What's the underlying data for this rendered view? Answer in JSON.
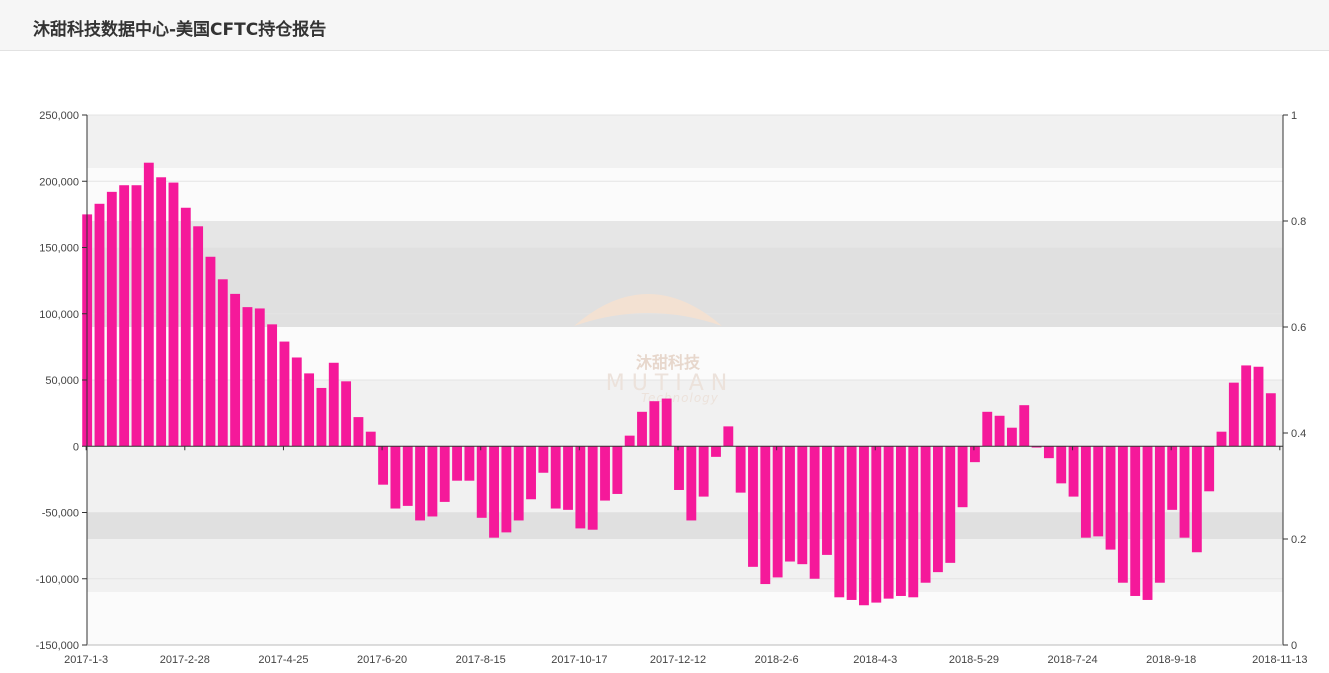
{
  "header": {
    "title": "沐甜科技数据中心-美国CFTC持仓报告"
  },
  "watermark": {
    "name_cn": "沐甜科技",
    "name_en": "MUTIAN",
    "sub": "Technology"
  },
  "colors": {
    "bar": "#f5199a",
    "axis": "#333333",
    "band_light": "#f1f1f1",
    "band_mid": "#e6e6e6",
    "band_dark": "#e0e0e0",
    "band_white": "#fbfbfb",
    "header_bg": "#f6f6f6"
  },
  "chart_data": {
    "type": "bar",
    "x_tick_labels": [
      "2017-1-3",
      "2017-2-28",
      "2017-4-25",
      "2017-6-20",
      "2017-8-15",
      "2017-10-17",
      "2017-12-12",
      "2018-2-6",
      "2018-4-3",
      "2018-5-29",
      "2018-7-24",
      "2018-9-18",
      "2018-11-13"
    ],
    "y_left": {
      "min": -150000,
      "max": 250000,
      "ticks": [
        250000,
        200000,
        150000,
        100000,
        50000,
        0,
        -50000,
        -100000,
        -150000
      ],
      "tick_labels": [
        "250,000",
        "200,000",
        "150,000",
        "100,000",
        "50,000",
        "0",
        "-50,000",
        "-100,000",
        "-150,000"
      ]
    },
    "y_right": {
      "min": 0,
      "max": 1,
      "ticks": [
        1,
        0.8,
        0.6,
        0.4,
        0.2,
        0
      ],
      "tick_labels": [
        "1",
        "0.8",
        "0.6",
        "0.4",
        "0.2",
        "0"
      ]
    },
    "bands": [
      {
        "from": 0.9,
        "to": 1.0,
        "shade": "light"
      },
      {
        "from": 0.8,
        "to": 0.9,
        "shade": "white"
      },
      {
        "from": 0.75,
        "to": 0.8,
        "shade": "mid"
      },
      {
        "from": 0.6,
        "to": 0.75,
        "shade": "dark"
      },
      {
        "from": 0.5,
        "to": 0.6,
        "shade": "white"
      },
      {
        "from": 0.4,
        "to": 0.5,
        "shade": "light"
      },
      {
        "from": 0.25,
        "to": 0.4,
        "shade": "light"
      },
      {
        "from": 0.2,
        "to": 0.25,
        "shade": "dark"
      },
      {
        "from": 0.1,
        "to": 0.2,
        "shade": "light"
      },
      {
        "from": 0.0,
        "to": 0.1,
        "shade": "white"
      }
    ],
    "series": [
      {
        "values": [
          175000,
          183000,
          192000,
          197000,
          197000,
          214000,
          203000,
          199000,
          180000,
          166000,
          143000,
          126000,
          115000,
          105000,
          104000,
          92000,
          79000,
          67000,
          55000,
          44000,
          63000,
          49000,
          22000,
          11000,
          -29000,
          -47000,
          -45000,
          -56000,
          -53000,
          -42000,
          -26000,
          -26000,
          -54000,
          -69000,
          -65000,
          -56000,
          -40000,
          -20000,
          -47000,
          -48000,
          -62000,
          -63000,
          -41000,
          -36000,
          8000,
          26000,
          34000,
          36000,
          -33000,
          -56000,
          -38000,
          -8000,
          15000,
          -35000,
          -91000,
          -104000,
          -99000,
          -87000,
          -89000,
          -100000,
          -82000,
          -114000,
          -116000,
          -120000,
          -118000,
          -115000,
          -113000,
          -114000,
          -103000,
          -95000,
          -88000,
          -46000,
          -12000,
          26000,
          23000,
          14000,
          31000,
          -1000,
          -9000,
          -28000,
          -38000,
          -69000,
          -68000,
          -78000,
          -103000,
          -113000,
          -116000,
          -103000,
          -48000,
          -69000,
          -80000,
          -34000,
          11000,
          48000,
          61000,
          60000,
          40000
        ]
      }
    ]
  }
}
